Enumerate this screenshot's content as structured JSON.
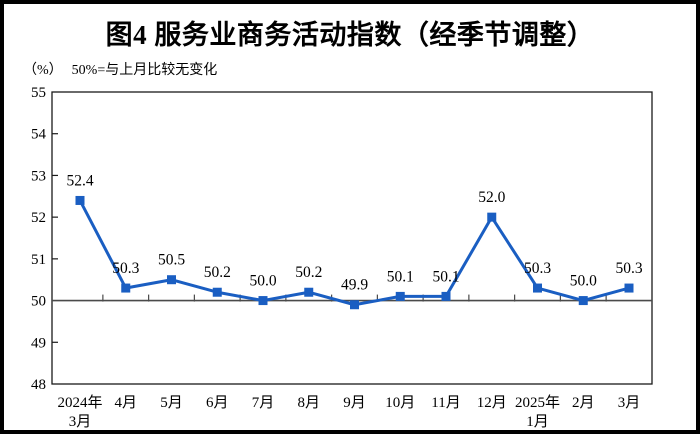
{
  "chart_data": {
    "type": "line",
    "title": "图4  服务业商务活动指数（经季节调整）",
    "unit_label": "（%）",
    "note": "50%=与上月比较无变化",
    "categories": [
      "2024年\n3月",
      "4月",
      "5月",
      "6月",
      "7月",
      "8月",
      "9月",
      "10月",
      "11月",
      "12月",
      "2025年\n1月",
      "2月",
      "3月"
    ],
    "series": [
      {
        "name": "服务业商务活动指数",
        "values": [
          52.4,
          50.3,
          50.5,
          50.2,
          50.0,
          50.2,
          49.9,
          50.1,
          50.1,
          52.0,
          50.3,
          50.0,
          50.3
        ]
      }
    ],
    "value_label_format": "one-decimal",
    "ylim": [
      48,
      55
    ],
    "ytick_step": 1,
    "yticks": [
      48,
      49,
      50,
      51,
      52,
      53,
      54,
      55
    ],
    "reference_line": 50,
    "grid": false,
    "legend_visible": false,
    "colors": {
      "line": "#1a5ec2",
      "marker": "#1a5ec2",
      "reference_line": "#4a4a4a",
      "plot_border": "#1a1a1a",
      "text": "#000000",
      "frame": "#000000",
      "background": "#ffffff"
    },
    "marker_shape": "square"
  }
}
